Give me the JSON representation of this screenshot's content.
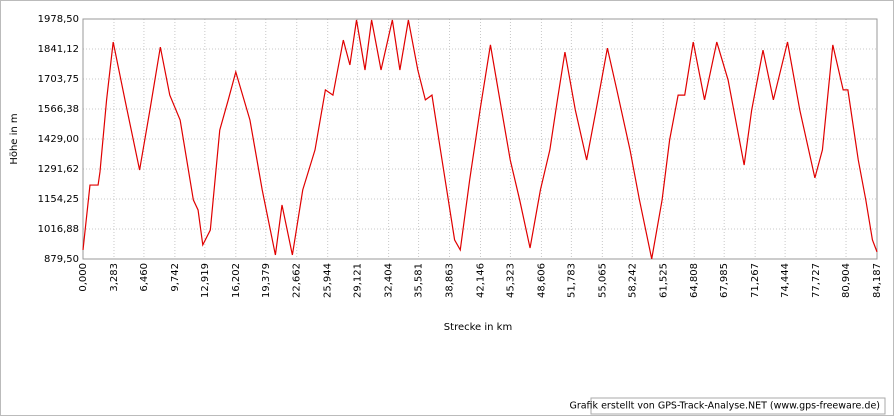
{
  "chart_data": {
    "type": "line",
    "x_label": "Strecke  in  km",
    "y_label": "Höhe  in  m",
    "footer": "Grafik erstellt von GPS-Track-Analyse.NET (www.gps-freeware.de)",
    "grid": true,
    "xlim": [
      0,
      84.187
    ],
    "ylim": [
      879.5,
      1978.5
    ],
    "xticks": [
      {
        "value": 0,
        "label": "0,000"
      },
      {
        "value": 3.283,
        "label": "3,283"
      },
      {
        "value": 6.46,
        "label": "6,460"
      },
      {
        "value": 9.742,
        "label": "9,742"
      },
      {
        "value": 12.919,
        "label": "12,919"
      },
      {
        "value": 16.202,
        "label": "16,202"
      },
      {
        "value": 19.379,
        "label": "19,379"
      },
      {
        "value": 22.662,
        "label": "22,662"
      },
      {
        "value": 25.944,
        "label": "25,944"
      },
      {
        "value": 29.121,
        "label": "29,121"
      },
      {
        "value": 32.404,
        "label": "32,404"
      },
      {
        "value": 35.581,
        "label": "35,581"
      },
      {
        "value": 38.863,
        "label": "38,863"
      },
      {
        "value": 42.146,
        "label": "42,146"
      },
      {
        "value": 45.323,
        "label": "45,323"
      },
      {
        "value": 48.606,
        "label": "48,606"
      },
      {
        "value": 51.783,
        "label": "51,783"
      },
      {
        "value": 55.065,
        "label": "55,065"
      },
      {
        "value": 58.242,
        "label": "58,242"
      },
      {
        "value": 61.525,
        "label": "61,525"
      },
      {
        "value": 64.808,
        "label": "64,808"
      },
      {
        "value": 67.985,
        "label": "67,985"
      },
      {
        "value": 71.267,
        "label": "71,267"
      },
      {
        "value": 74.444,
        "label": "74,444"
      },
      {
        "value": 77.727,
        "label": "77,727"
      },
      {
        "value": 80.904,
        "label": "80,904"
      },
      {
        "value": 84.187,
        "label": "84,187"
      }
    ],
    "yticks": [
      {
        "value": 879.5,
        "label": "879,50"
      },
      {
        "value": 1016.88,
        "label": "1016,88"
      },
      {
        "value": 1154.25,
        "label": "1154,25"
      },
      {
        "value": 1291.62,
        "label": "1291,62"
      },
      {
        "value": 1429,
        "label": "1429,00"
      },
      {
        "value": 1566.38,
        "label": "1566,38"
      },
      {
        "value": 1703.75,
        "label": "1703,75"
      },
      {
        "value": 1841.12,
        "label": "1841,12"
      },
      {
        "value": 1978.5,
        "label": "1978,50"
      }
    ],
    "series": [
      {
        "color": "#e00000",
        "x": [
          0,
          0.74,
          1.6,
          1.8,
          2.5,
          3.2,
          4.45,
          6.0,
          7.1,
          8.2,
          9.2,
          10.3,
          11.7,
          12.2,
          12.7,
          13.5,
          14.5,
          15.4,
          16.2,
          17.7,
          19.0,
          20.4,
          21.1,
          22.2,
          23.3,
          24.6,
          25.7,
          26.5,
          27.6,
          28.3,
          29.0,
          29.9,
          30.6,
          31.6,
          32.8,
          33.6,
          34.5,
          35.5,
          36.3,
          37.0,
          37.9,
          39.4,
          40.0,
          41.0,
          42.1,
          43.2,
          44.2,
          45.3,
          46.3,
          47.4,
          48.5,
          49.5,
          50.3,
          51.1,
          52.2,
          53.4,
          54.4,
          55.6,
          56.6,
          58.0,
          59.0,
          60.3,
          61.4,
          62.2,
          63.1,
          63.8,
          64.7,
          65.9,
          67.2,
          68.4,
          70.1,
          70.9,
          72.1,
          73.2,
          74.7,
          76.0,
          77.6,
          78.4,
          79.5,
          80.6,
          81.1,
          82.2,
          83.0,
          83.7,
          84.187
        ],
        "values": [
          921,
          1218,
          1218,
          1278,
          1608,
          1873,
          1608,
          1287,
          1563,
          1850,
          1630,
          1516,
          1150,
          1104,
          944,
          1012,
          1470,
          1608,
          1736,
          1516,
          1196,
          898,
          1127,
          898,
          1196,
          1379,
          1654,
          1630,
          1882,
          1768,
          1974,
          1745,
          1974,
          1745,
          1974,
          1745,
          1974,
          1745,
          1608,
          1630,
          1379,
          967,
          921,
          1242,
          1562,
          1860,
          1608,
          1333,
          1150,
          930,
          1196,
          1379,
          1608,
          1827,
          1562,
          1333,
          1562,
          1845,
          1654,
          1379,
          1150,
          880,
          1150,
          1425,
          1630,
          1630,
          1873,
          1608,
          1873,
          1699,
          1310,
          1562,
          1836,
          1608,
          1873,
          1562,
          1251,
          1379,
          1860,
          1654,
          1654,
          1333,
          1150,
          967,
          912
        ]
      }
    ]
  }
}
